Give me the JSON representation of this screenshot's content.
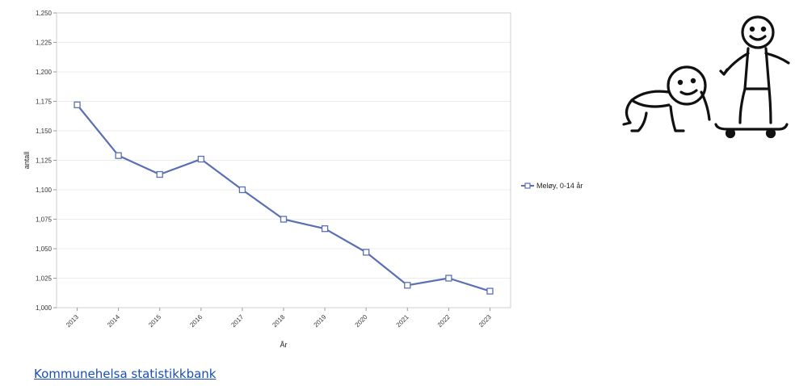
{
  "chart_data": {
    "type": "line",
    "xlabel": "År",
    "ylabel": "antall",
    "categories": [
      "2013",
      "2014",
      "2015",
      "2016",
      "2017",
      "2018",
      "2019",
      "2020",
      "2021",
      "2022",
      "2023"
    ],
    "series": [
      {
        "name": "Meløy, 0-14 år",
        "values": [
          1172,
          1129,
          1113,
          1126,
          1100,
          1075,
          1067,
          1047,
          1019,
          1025,
          1014
        ]
      }
    ],
    "ylim": [
      1000,
      1250
    ],
    "yticks": [
      1000,
      1025,
      1050,
      1075,
      1100,
      1125,
      1150,
      1175,
      1200,
      1225,
      1250
    ],
    "ytick_labels": [
      "1,000",
      "1,025",
      "1,050",
      "1,075",
      "1,100",
      "1,125",
      "1,150",
      "1,175",
      "1,200",
      "1,225",
      "1,250"
    ],
    "grid": true,
    "legend": "right",
    "colors": {
      "line": "#5b6fb5",
      "marker_fill": "#ffffff",
      "grid": "#ececec"
    }
  },
  "source_link": {
    "label": "Kommunehelsa statistikkbank"
  },
  "illustration": {
    "icon": "stick-figures-crawling-baby-and-skateboarder-icon"
  }
}
